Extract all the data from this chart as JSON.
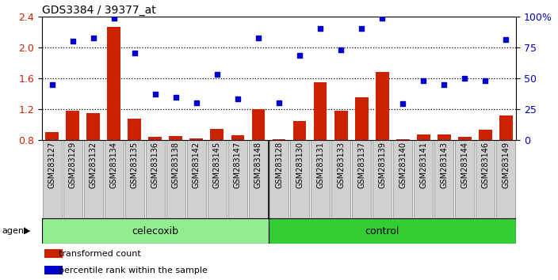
{
  "title": "GDS3384 / 39377_at",
  "samples": [
    "GSM283127",
    "GSM283129",
    "GSM283132",
    "GSM283134",
    "GSM283135",
    "GSM283136",
    "GSM283138",
    "GSM283142",
    "GSM283145",
    "GSM283147",
    "GSM283148",
    "GSM283128",
    "GSM283130",
    "GSM283131",
    "GSM283133",
    "GSM283137",
    "GSM283139",
    "GSM283140",
    "GSM283141",
    "GSM283143",
    "GSM283144",
    "GSM283146",
    "GSM283149"
  ],
  "bar_values": [
    0.9,
    1.18,
    1.15,
    2.27,
    1.08,
    0.84,
    0.85,
    0.82,
    0.94,
    0.86,
    1.2,
    0.81,
    1.05,
    1.55,
    1.18,
    1.35,
    1.68,
    0.81,
    0.87,
    0.87,
    0.84,
    0.93,
    1.12
  ],
  "scatter_values": [
    1.52,
    2.08,
    2.12,
    2.38,
    1.93,
    1.4,
    1.35,
    1.28,
    1.65,
    1.33,
    2.13,
    1.28,
    1.9,
    2.25,
    1.97,
    2.25,
    2.38,
    1.27,
    1.57,
    1.52,
    1.6,
    1.57,
    2.1
  ],
  "celecoxib_count": 11,
  "control_count": 12,
  "ylim_left": [
    0.8,
    2.4
  ],
  "ylim_right": [
    0,
    100
  ],
  "yticks_left": [
    0.8,
    1.2,
    1.6,
    2.0,
    2.4
  ],
  "yticks_right": [
    0,
    25,
    50,
    75,
    100
  ],
  "bar_color": "#cc2200",
  "scatter_color": "#0000cc",
  "celecoxib_color": "#90ee90",
  "control_color": "#32cd32",
  "tick_bg_color": "#d0d0d0",
  "label_fontsize": 7.0,
  "agent_fontsize": 9,
  "legend_fontsize": 8
}
